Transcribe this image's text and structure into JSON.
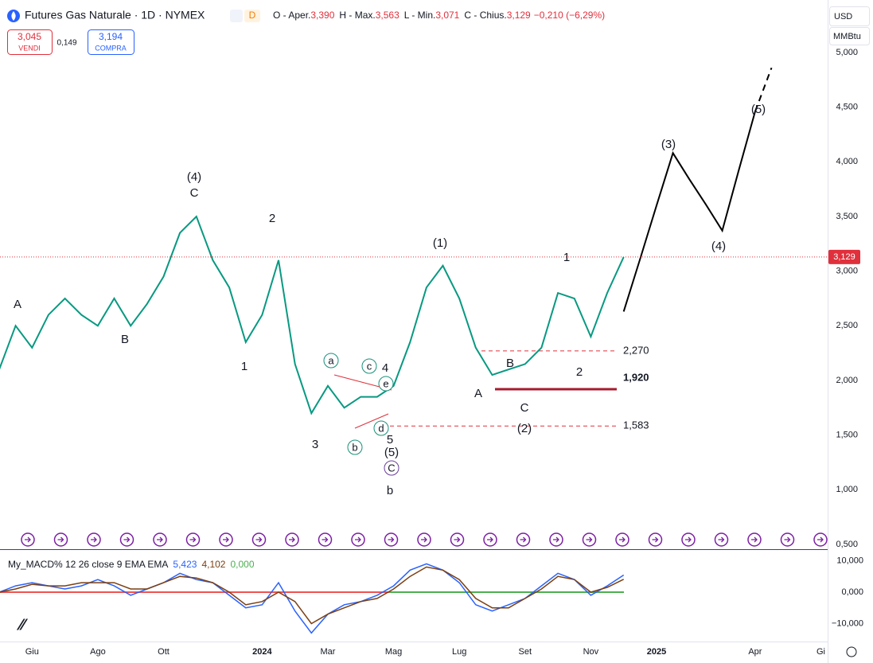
{
  "header": {
    "title": "Futures Gas Naturale · 1D · NYMEX",
    "badge": "D",
    "ohlc": [
      {
        "label": "O - Aper.",
        "value": "3,390"
      },
      {
        "label": "H - Max.",
        "value": "3,563"
      },
      {
        "label": "L - Min.",
        "value": "3,071"
      },
      {
        "label": "C - Chius.",
        "value": "3,129"
      }
    ],
    "change": "−0,210 (−6,29%)"
  },
  "trade": {
    "sell_price": "3,045",
    "sell_label": "VENDI",
    "spread": "0,149",
    "buy_price": "3,194",
    "buy_label": "COMPRA"
  },
  "scale": {
    "currency": "USD",
    "unit": "MMBtu"
  },
  "chart_data": [
    {
      "type": "line",
      "categories": [
        null,
        null,
        "Giu",
        null,
        null,
        null,
        "Ago",
        null,
        null,
        null,
        "Ott",
        null,
        null,
        null,
        null,
        null,
        "2024",
        null,
        null,
        null,
        "Mar",
        null,
        null,
        null,
        "Mag",
        null,
        null,
        null,
        "Lug",
        null,
        null,
        null,
        "Set",
        null,
        null,
        null,
        "Nov",
        null,
        null,
        null,
        "2025",
        null,
        null,
        null,
        null,
        null,
        "Apr",
        null,
        null,
        null,
        "Gi"
      ],
      "series": [
        {
          "color": "#089981",
          "values": [
            2.1,
            2.5,
            2.3,
            2.6,
            2.75,
            2.6,
            2.5,
            2.75,
            2.5,
            2.7,
            2.95,
            3.35,
            3.5,
            3.1,
            2.85,
            2.35,
            2.6,
            3.1,
            2.15,
            1.7,
            1.95,
            1.75,
            1.85,
            1.85,
            1.95,
            2.35,
            2.85,
            3.05,
            2.75,
            2.3,
            2.05,
            2.1,
            2.15,
            2.3,
            2.8,
            2.75,
            2.4,
            2.8,
            3.129,
            null,
            null,
            null,
            null,
            null,
            null,
            null,
            null,
            null,
            null,
            null,
            null
          ]
        },
        {
          "color": "#000000",
          "values": [
            null,
            null,
            null,
            null,
            null,
            null,
            null,
            null,
            null,
            null,
            null,
            null,
            null,
            null,
            null,
            null,
            null,
            null,
            null,
            null,
            null,
            null,
            null,
            null,
            null,
            null,
            null,
            null,
            null,
            null,
            null,
            null,
            null,
            null,
            null,
            null,
            null,
            null,
            2.63,
            3.11,
            3.6,
            4.08,
            3.84,
            3.61,
            3.37,
            3.92,
            4.46,
            null,
            null,
            null,
            null
          ]
        },
        {
          "color": "#000000",
          "dashed": true,
          "values": [
            null,
            null,
            null,
            null,
            null,
            null,
            null,
            null,
            null,
            null,
            null,
            null,
            null,
            null,
            null,
            null,
            null,
            null,
            null,
            null,
            null,
            null,
            null,
            null,
            null,
            null,
            null,
            null,
            null,
            null,
            null,
            null,
            null,
            null,
            null,
            null,
            null,
            null,
            null,
            null,
            null,
            null,
            null,
            null,
            null,
            null,
            4.46,
            4.86,
            null,
            null,
            null
          ]
        }
      ],
      "ylim": [
        0.5,
        5.48
      ],
      "yticks": [
        {
          "value": 5,
          "label": "5,000"
        },
        {
          "value": 4.5,
          "label": "4,500"
        },
        {
          "value": 4,
          "label": "4,000"
        },
        {
          "value": 3.5,
          "label": "3,500"
        },
        {
          "value": 3,
          "label": "3,000"
        },
        {
          "value": 2.5,
          "label": "2,500"
        },
        {
          "value": 2,
          "label": "2,000"
        },
        {
          "value": 1.5,
          "label": "1,500"
        },
        {
          "value": 1,
          "label": "1,000"
        },
        {
          "value": 0.5,
          "label": "0,500"
        }
      ],
      "last_price": {
        "value": 3.129,
        "label": "3,129"
      },
      "levels": [
        {
          "value": 2.27,
          "label": "2,270",
          "style": "dashed"
        },
        {
          "value": 1.92,
          "label": "1,920",
          "style": "solid"
        },
        {
          "value": 1.583,
          "label": "1,583",
          "style": "dashed"
        }
      ],
      "annotations": [
        {
          "text": "(4)",
          "color": "#2136b8"
        },
        {
          "text": "C",
          "color": "#e0303c"
        },
        {
          "text": "A",
          "color": "#e0303c"
        },
        {
          "text": "B",
          "color": "#e0303c"
        },
        {
          "text": "2",
          "color": "#e0303c"
        },
        {
          "text": "1",
          "color": "#e0303c"
        },
        {
          "text": "a",
          "color": "#16907a",
          "circled": true
        },
        {
          "text": "c",
          "color": "#16907a",
          "circled": true
        },
        {
          "text": "4",
          "color": "#e0303c"
        },
        {
          "text": "e",
          "color": "#16907a",
          "circled": true
        },
        {
          "text": "d",
          "color": "#16907a",
          "circled": true
        },
        {
          "text": "b",
          "color": "#16907a",
          "circled": true
        },
        {
          "text": "3",
          "color": "#e0303c"
        },
        {
          "text": "5",
          "color": "#e0303c"
        },
        {
          "text": "(5)",
          "color": "#2136b8"
        },
        {
          "text": "C",
          "color": "#6a3d9a",
          "circled": true
        },
        {
          "text": "b",
          "color": "#2e8b2e"
        },
        {
          "text": "(1)",
          "color": "#2136b8"
        },
        {
          "text": "A",
          "color": "#e0303c"
        },
        {
          "text": "B",
          "color": "#e0303c"
        },
        {
          "text": "C",
          "color": "#e0303c"
        },
        {
          "text": "(2)",
          "color": "#2136b8"
        },
        {
          "text": "1",
          "color": "#e0303c"
        },
        {
          "text": "2",
          "color": "#e0303c"
        },
        {
          "text": "(3)",
          "color": "#2136b8"
        },
        {
          "text": "(4)",
          "color": "#2136b8"
        },
        {
          "text": "(5)",
          "color": "#2136b8"
        }
      ]
    },
    {
      "type": "line",
      "title": "My_MACD% 12 26 close 9 EMA EMA",
      "readouts": [
        "5,423",
        "4,102",
        "0,000"
      ],
      "series": [
        {
          "color": "#2962ff",
          "values": [
            0,
            2,
            3,
            2,
            1,
            2,
            4,
            2,
            -1,
            1,
            3,
            6,
            4,
            3,
            -1,
            -5,
            -4,
            3,
            -6,
            -13,
            -7,
            -4,
            -3,
            -1,
            2,
            7,
            9,
            7,
            3,
            -4,
            -6,
            -4,
            -2,
            2,
            6,
            4,
            -1,
            2,
            5.423,
            null,
            null,
            null,
            null,
            null,
            null,
            null,
            null,
            null,
            null,
            null,
            null
          ]
        },
        {
          "color": "#7b3f12",
          "values": [
            0,
            1,
            2.5,
            2,
            2,
            3,
            3,
            3,
            1,
            1,
            3,
            5,
            4.5,
            3,
            0,
            -4,
            -3,
            0,
            -3,
            -10,
            -7,
            -5,
            -3,
            -2,
            1,
            5,
            8,
            7,
            4,
            -2,
            -5,
            -5,
            -2,
            1,
            5,
            4,
            0,
            1.5,
            4.102,
            null,
            null,
            null,
            null,
            null,
            null,
            null,
            null,
            null,
            null,
            null,
            null
          ]
        }
      ],
      "zero_value": 0,
      "zero_color": "#4caf50",
      "ylim": [
        -15.7,
        12.9
      ],
      "yticks": [
        {
          "value": 10,
          "label": "10,000"
        },
        {
          "value": 0,
          "label": "0,000"
        },
        {
          "value": -10,
          "label": "−10,000"
        }
      ]
    }
  ]
}
